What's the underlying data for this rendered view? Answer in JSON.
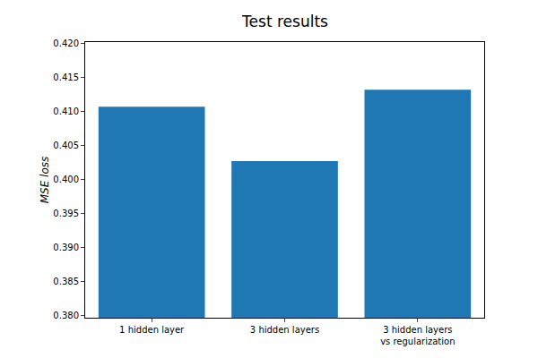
{
  "chart_data": {
    "type": "bar",
    "title": "Test results",
    "y_label": "MSE loss",
    "categories": [
      "1 hidden layer",
      "3 hidden layers",
      "3 hidden layers\nvs regularization"
    ],
    "values": [
      0.4107,
      0.4027,
      0.4132
    ],
    "color": "#1f77b4",
    "ylim": [
      0.3797,
      0.4202
    ],
    "yticks": [
      {
        "value": 0.38,
        "label": "0.380"
      },
      0.385,
      {
        "value": 0.39,
        "label": "0.390"
      },
      0.395,
      {
        "value": 0.4,
        "label": "0.400"
      },
      0.405,
      {
        "value": 0.41,
        "label": "0.410"
      },
      0.415,
      {
        "value": 0.42,
        "label": "0.420"
      }
    ],
    "grid": false
  }
}
